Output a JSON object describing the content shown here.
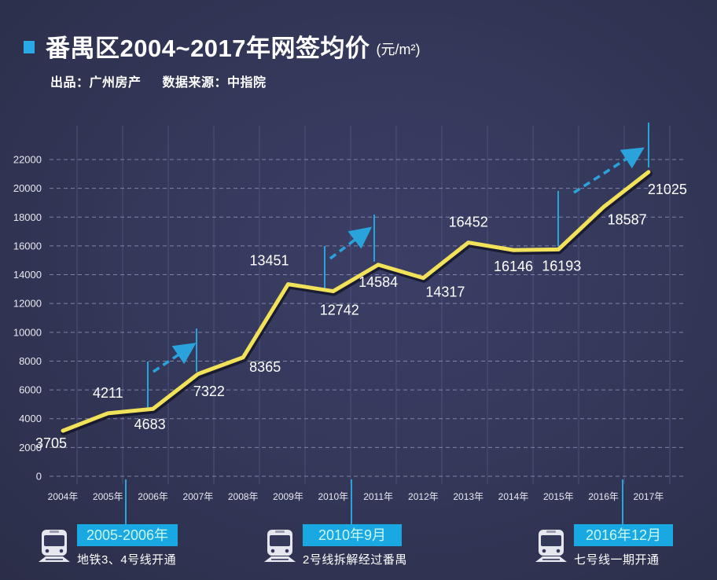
{
  "header": {
    "title": "番禺区2004~2017年网签均价",
    "unit": "(元/m²)",
    "producer": "出品：广州房产",
    "source": "数据来源：中指院"
  },
  "colors": {
    "background": "#34385a",
    "line": "#f2e25a",
    "accent_blue": "#29a9e8",
    "milestone_box": "#1aa8e2",
    "milestone_text": "#c8f7ef"
  },
  "chart_data": {
    "type": "line",
    "title": "番禺区2004~2017年网签均价 (元/m²)",
    "xlabel": "",
    "ylabel": "元/m²",
    "ylim": [
      0,
      22000
    ],
    "yticks": [
      0,
      2000,
      4000,
      6000,
      8000,
      10000,
      12000,
      14000,
      16000,
      18000,
      20000,
      22000
    ],
    "categories": [
      "2004年",
      "2005年",
      "2006年",
      "2007年",
      "2008年",
      "2009年",
      "2010年",
      "2011年",
      "2012年",
      "2013年",
      "2014年",
      "2015年",
      "2016年",
      "2017年"
    ],
    "series": [
      {
        "name": "网签均价",
        "values": [
          3705,
          4211,
          4683,
          7322,
          8365,
          13451,
          12742,
          14584,
          14317,
          16452,
          16146,
          16193,
          18587,
          21025
        ]
      }
    ],
    "grid": true,
    "legend": "none",
    "annotations": [
      {
        "type": "rising-arrow",
        "from": "2006年",
        "to": "2007年"
      },
      {
        "type": "rising-arrow",
        "from": "2010年",
        "to": "2011年"
      },
      {
        "type": "rising-arrow",
        "from": "2015年",
        "to": "2017年"
      }
    ]
  },
  "milestones": [
    {
      "date": "2005-2006年",
      "desc": "地铁3、4号线开通",
      "icon": "train-icon"
    },
    {
      "date": "2010年9月",
      "desc": "2号线拆解经过番禺",
      "icon": "train-icon"
    },
    {
      "date": "2016年12月",
      "desc": "七号线一期开通",
      "icon": "train-icon"
    }
  ]
}
